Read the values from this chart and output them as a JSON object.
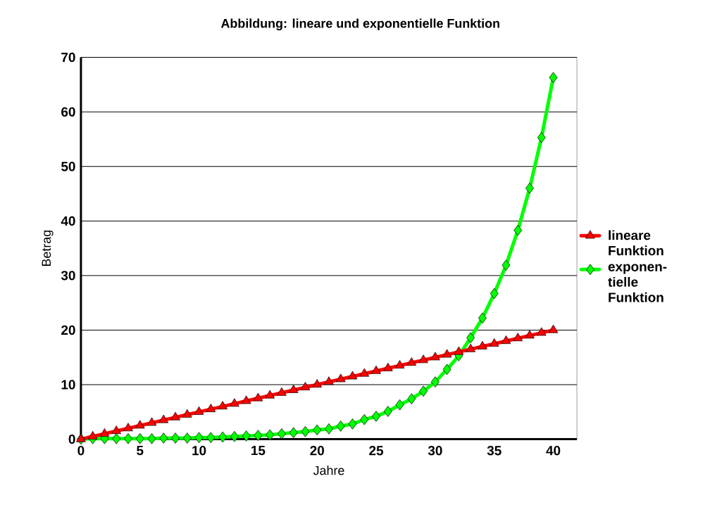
{
  "chart_data": {
    "type": "line",
    "title": "Abbildung: lineare und exponentielle Funktion",
    "xlabel": "Jahre",
    "ylabel": "Betrag",
    "x": [
      0,
      1,
      2,
      3,
      4,
      5,
      6,
      7,
      8,
      9,
      10,
      11,
      12,
      13,
      14,
      15,
      16,
      17,
      18,
      19,
      20,
      21,
      22,
      23,
      24,
      25,
      26,
      27,
      28,
      29,
      30,
      31,
      32,
      33,
      34,
      35,
      36,
      37,
      38,
      39,
      40
    ],
    "series": [
      {
        "name": "lineare Funktion",
        "color": "#ff0000",
        "marker": "triangle",
        "values": [
          0,
          0.5,
          1,
          1.5,
          2,
          2.5,
          3,
          3.5,
          4,
          4.5,
          5,
          5.5,
          6,
          6.5,
          7,
          7.5,
          8,
          8.5,
          9,
          9.5,
          10,
          10.5,
          11,
          11.5,
          12,
          12.5,
          13,
          13.5,
          14,
          14.5,
          15,
          15.5,
          16,
          16.5,
          17,
          17.5,
          18,
          18.5,
          19,
          19.5,
          20
        ]
      },
      {
        "name": "exponen-tielle Funktion",
        "color": "#00ff00",
        "marker": "diamond",
        "values": [
          0,
          0.1,
          0.1,
          0.1,
          0.1,
          0.1,
          0.1,
          0.2,
          0.2,
          0.2,
          0.3,
          0.3,
          0.4,
          0.5,
          0.6,
          0.7,
          0.8,
          1.0,
          1.2,
          1.4,
          1.7,
          1.9,
          2.4,
          2.8,
          3.6,
          4.2,
          5.1,
          6.3,
          7.4,
          8.8,
          10.5,
          12.8,
          15.3,
          18.6,
          22.2,
          26.7,
          31.9,
          38.3,
          46.0,
          55.3,
          66.3
        ]
      }
    ],
    "xlim": [
      0,
      42
    ],
    "ylim": [
      0,
      70
    ],
    "xticks": [
      0,
      5,
      10,
      15,
      20,
      25,
      30,
      35,
      40
    ],
    "yticks": [
      0,
      10,
      20,
      30,
      40,
      50,
      60,
      70
    ],
    "grid": "y",
    "legend": "right",
    "line_style": "solid"
  }
}
